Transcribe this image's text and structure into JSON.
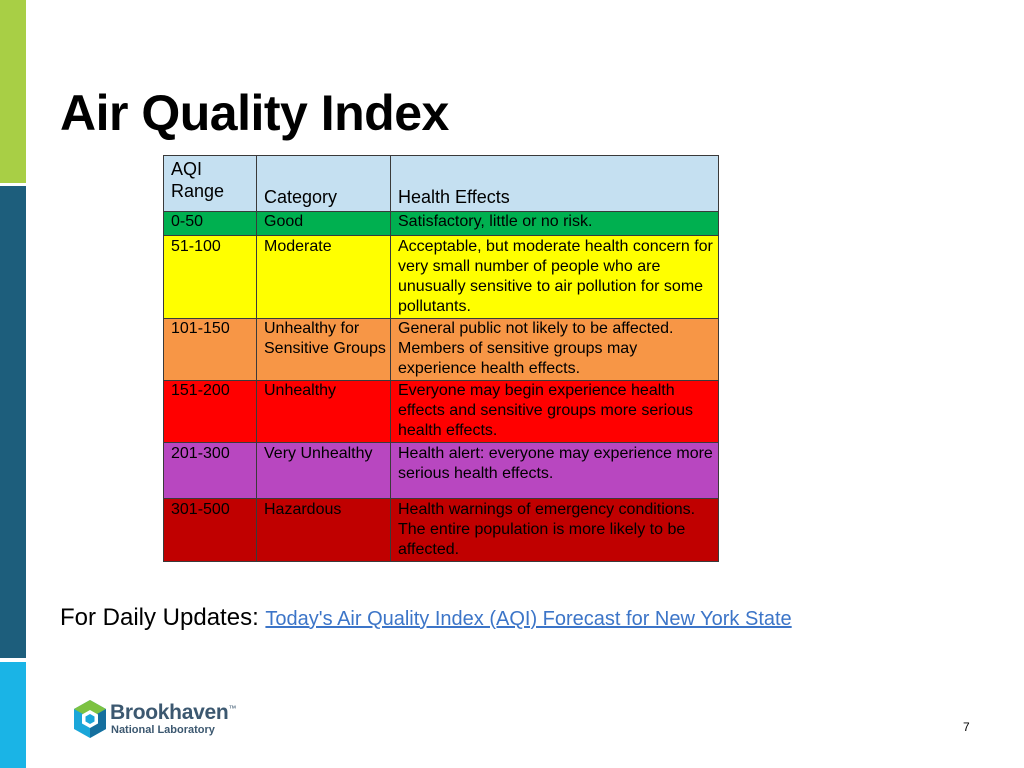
{
  "slide": {
    "title": "Air Quality Index",
    "page_number": "7"
  },
  "table": {
    "headers": {
      "range_line1": "AQI",
      "range_line2": "Range",
      "category": "Category",
      "effects": "Health Effects"
    },
    "rows": [
      {
        "range": "0-50",
        "category": "Good",
        "effects": "Satisfactory, little or no risk.",
        "color": "#00b050"
      },
      {
        "range": "51-100",
        "category": "Moderate",
        "effects": "Acceptable, but moderate health concern for very small number of people who are unusually sensitive to air pollution for some pollutants.",
        "color": "#ffff00"
      },
      {
        "range": "101-150",
        "category": "Unhealthy for Sensitive Groups",
        "effects": "General public not likely to be affected. Members of sensitive groups may experience health effects.",
        "color": "#f79646"
      },
      {
        "range": "151-200",
        "category": "Unhealthy",
        "effects": "Everyone may begin experience health effects and sensitive groups more serious health effects.",
        "color": "#ff0000"
      },
      {
        "range": "201-300",
        "category": "Very Unhealthy",
        "effects": "Health alert: everyone may experience more serious health effects.",
        "color": "#b847c0"
      },
      {
        "range": "301-500",
        "category": "Hazardous",
        "effects": "Health warnings of emergency conditions. The entire population is more likely to be affected.",
        "color": "#c00000"
      }
    ]
  },
  "updates": {
    "label": "For Daily Updates:",
    "link_text": "Today's Air Quality Index (AQI) Forecast for New York State"
  },
  "logo": {
    "name": "Brookhaven",
    "trademark": "™",
    "subtitle": "National Laboratory",
    "icon": "brookhaven-hexagon-icon"
  },
  "colors": {
    "sidebar_green": "#a8cf45",
    "sidebar_teal": "#1d5e7c",
    "sidebar_cyan": "#1ab4e6",
    "link": "#3c75c8",
    "header_fill": "#c5e0f1"
  }
}
